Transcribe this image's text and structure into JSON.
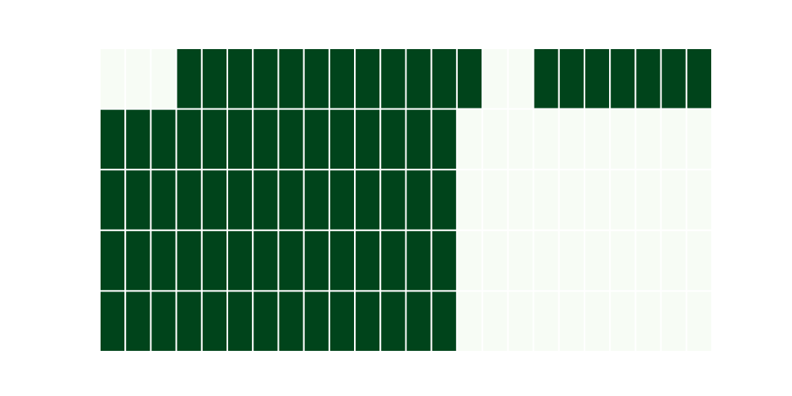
{
  "chart_data": {
    "type": "heatmap",
    "title": "",
    "xlabel": "",
    "ylabel": "",
    "rows": 5,
    "cols": 24,
    "colors": {
      "high": "#00441b",
      "low": "#f7fcf5",
      "separator": "#ffffff"
    },
    "values": [
      [
        0,
        0,
        0,
        1,
        1,
        1,
        1,
        1,
        1,
        1,
        1,
        1,
        1,
        1,
        1,
        0,
        0,
        1,
        1,
        1,
        1,
        1,
        1,
        1
      ],
      [
        1,
        1,
        1,
        1,
        1,
        1,
        1,
        1,
        1,
        1,
        1,
        1,
        1,
        1,
        0,
        0,
        0,
        0,
        0,
        0,
        0,
        0,
        0,
        0
      ],
      [
        1,
        1,
        1,
        1,
        1,
        1,
        1,
        1,
        1,
        1,
        1,
        1,
        1,
        1,
        0,
        0,
        0,
        0,
        0,
        0,
        0,
        0,
        0,
        0
      ],
      [
        1,
        1,
        1,
        1,
        1,
        1,
        1,
        1,
        1,
        1,
        1,
        1,
        1,
        1,
        0,
        0,
        0,
        0,
        0,
        0,
        0,
        0,
        0,
        0
      ],
      [
        1,
        1,
        1,
        1,
        1,
        1,
        1,
        1,
        1,
        1,
        1,
        1,
        1,
        1,
        0,
        0,
        0,
        0,
        0,
        0,
        0,
        0,
        0,
        0
      ]
    ],
    "grid": false,
    "legend": "none"
  }
}
